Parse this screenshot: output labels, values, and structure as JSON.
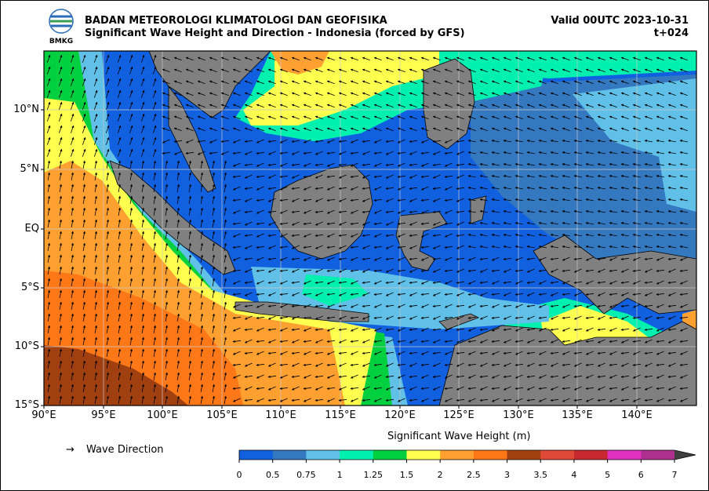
{
  "header": {
    "agency": "BADAN METEOROLOGI KLIMATOLOGI DAN GEOFISIKA",
    "subtitle": "Significant Wave Height and Direction - Indonesia (forced by GFS)",
    "valid": "Valid 00UTC 2023-10-31",
    "forecast_step": "t+024",
    "logo_text": "BMKG"
  },
  "map": {
    "lat_labels": [
      "10°N",
      "5°N",
      "EQ",
      "5°S",
      "10°S",
      "15°S"
    ],
    "lon_labels": [
      "90°E",
      "95°E",
      "100°E",
      "105°E",
      "110°E",
      "115°E",
      "120°E",
      "125°E",
      "130°E",
      "135°E",
      "140°E"
    ],
    "extent": {
      "lon_min": 90,
      "lon_max": 145,
      "lat_min": -15,
      "lat_max": 15
    },
    "land_color": "#808080",
    "grid": true
  },
  "legend": {
    "arrow_symbol": "→",
    "direction_label": "Wave Direction"
  },
  "colorbar": {
    "title": "Significant Wave Height (m)",
    "ticks": [
      "0",
      "0.5",
      "0.75",
      "1",
      "1.25",
      "1.5",
      "2",
      "2.5",
      "3",
      "3.5",
      "4",
      "5",
      "6",
      "7"
    ],
    "colors": [
      "#1160e0",
      "#3478c0",
      "#60c0e8",
      "#00f0b0",
      "#00d040",
      "#ffff50",
      "#ffa030",
      "#ff7818",
      "#a04010",
      "#e04838",
      "#c82830",
      "#e030c0",
      "#b03090"
    ],
    "extend_color": "#404040"
  }
}
